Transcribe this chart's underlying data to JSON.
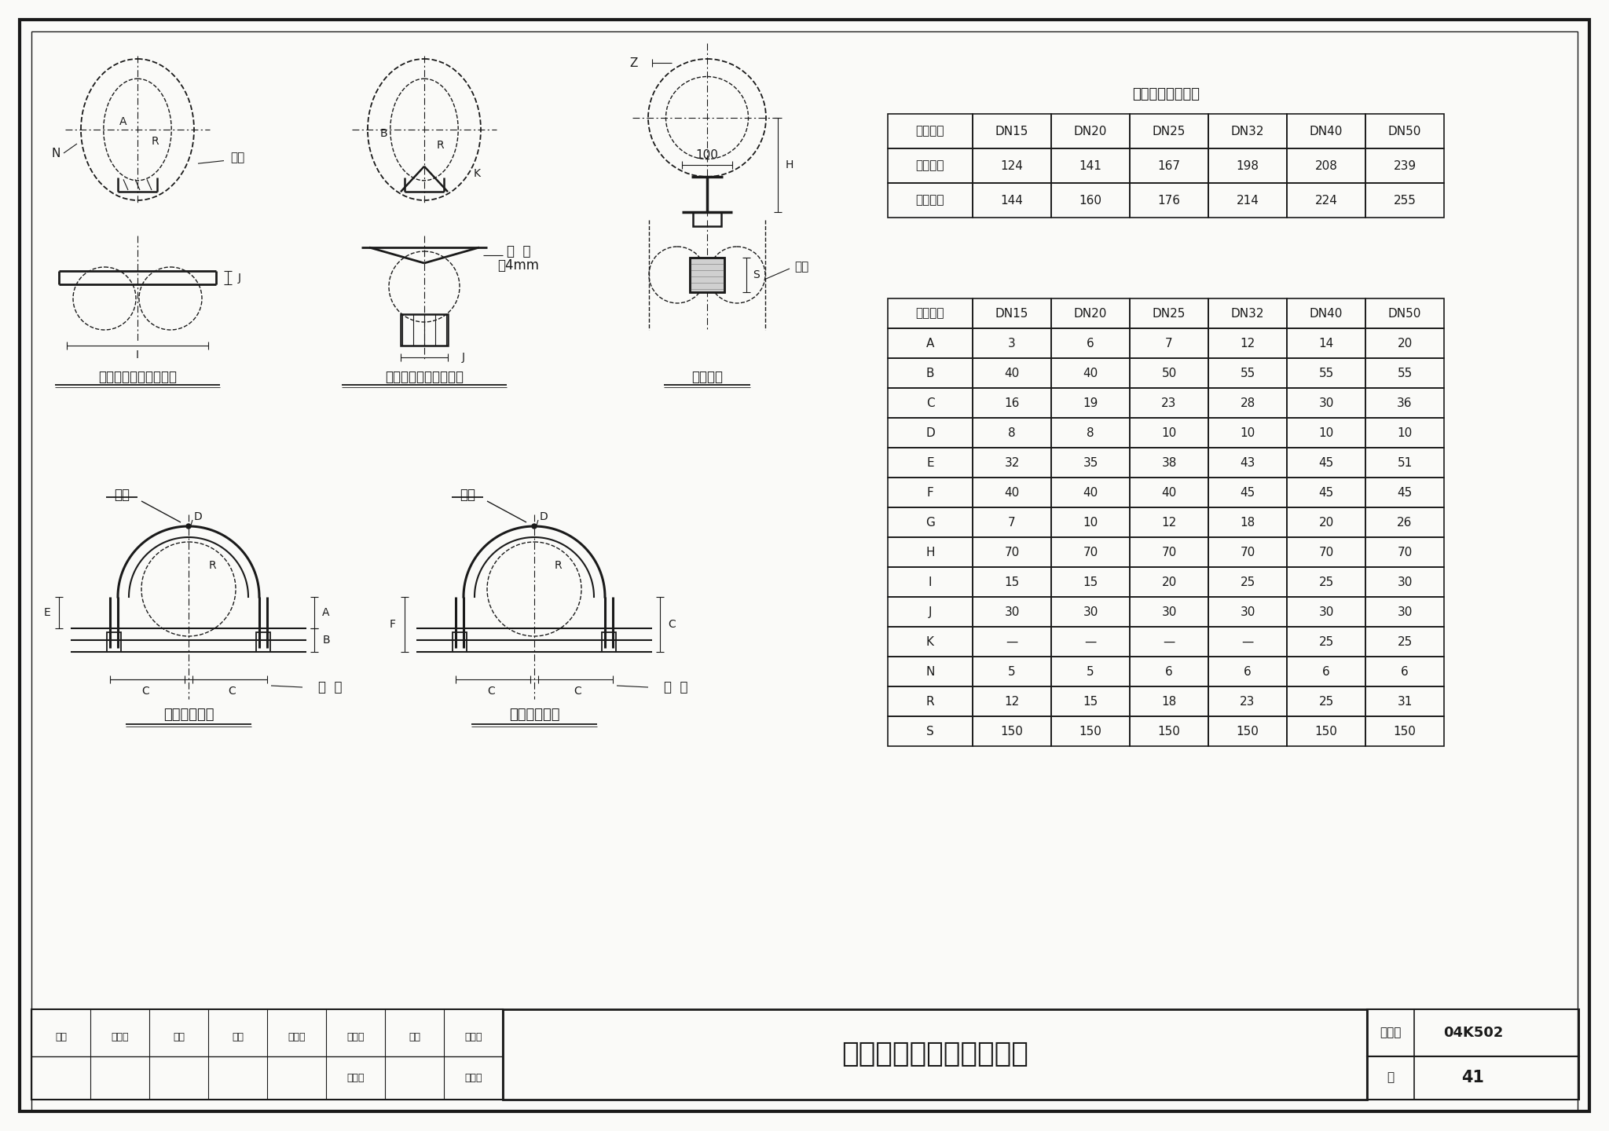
{
  "bg_color": "#ffffff",
  "paper_color": "#fafaf8",
  "title_text": "管卡、管托及限位块详图",
  "page_num": "41",
  "atlas_num": "04K502",
  "table1_title": "管卡圆钔展开长度",
  "table1_headers": [
    "公称直径",
    "DN15",
    "DN20",
    "DN25",
    "DN32",
    "DN40",
    "DN50"
  ],
  "table1_row1": [
    "滑动支架",
    "124",
    "141",
    "167",
    "198",
    "208",
    "239"
  ],
  "table1_row2": [
    "固定支架",
    "144",
    "160",
    "176",
    "214",
    "224",
    "255"
  ],
  "table2_headers": [
    "公称直径",
    "DN15",
    "DN20",
    "DN25",
    "DN32",
    "DN40",
    "DN50"
  ],
  "table2_rows": [
    [
      "A",
      "3",
      "6",
      "7",
      "12",
      "14",
      "20"
    ],
    [
      "B",
      "40",
      "40",
      "50",
      "55",
      "55",
      "55"
    ],
    [
      "C",
      "16",
      "19",
      "23",
      "28",
      "30",
      "36"
    ],
    [
      "D",
      "8",
      "8",
      "10",
      "10",
      "10",
      "10"
    ],
    [
      "E",
      "32",
      "35",
      "38",
      "43",
      "45",
      "51"
    ],
    [
      "F",
      "40",
      "40",
      "40",
      "45",
      "45",
      "45"
    ],
    [
      "G",
      "7",
      "10",
      "12",
      "18",
      "20",
      "26"
    ],
    [
      "H",
      "70",
      "70",
      "70",
      "70",
      "70",
      "70"
    ],
    [
      "I",
      "15",
      "15",
      "20",
      "25",
      "25",
      "30"
    ],
    [
      "J",
      "30",
      "30",
      "30",
      "30",
      "30",
      "30"
    ],
    [
      "K",
      "—",
      "—",
      "—",
      "—",
      "25",
      "25"
    ],
    [
      "N",
      "5",
      "5",
      "6",
      "6",
      "6",
      "6"
    ],
    [
      "R",
      "12",
      "15",
      "18",
      "23",
      "25",
      "31"
    ],
    [
      "S",
      "150",
      "150",
      "150",
      "150",
      "150",
      "150"
    ]
  ],
  "lc": "#1a1a1a",
  "tc": "#1a1a1a"
}
